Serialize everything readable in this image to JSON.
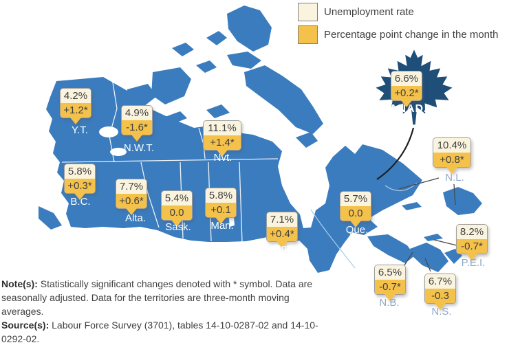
{
  "legend": {
    "items": [
      {
        "label": "Unemployment rate",
        "color": "#FAF3DE"
      },
      {
        "label": "Percentage point change in the month",
        "color": "#F4C14B"
      }
    ]
  },
  "canada": {
    "name": "CANADA",
    "rate": "6.6%",
    "change": "+0.2*"
  },
  "regions": [
    {
      "id": "yt",
      "label": "Y.T.",
      "rate": "4.2%",
      "change": "+1.2*"
    },
    {
      "id": "nwt",
      "label": "N.W.T.",
      "rate": "4.9%",
      "change": "-1.6*"
    },
    {
      "id": "nvt",
      "label": "Nvt.",
      "rate": "11.1%",
      "change": "+1.4*"
    },
    {
      "id": "bc",
      "label": "B.C.",
      "rate": "5.8%",
      "change": "+0.3*"
    },
    {
      "id": "alta",
      "label": "Alta.",
      "rate": "7.7%",
      "change": "+0.6*"
    },
    {
      "id": "sask",
      "label": "Sask.",
      "rate": "5.4%",
      "change": "0.0"
    },
    {
      "id": "man",
      "label": "Man.",
      "rate": "5.8%",
      "change": "+0.1"
    },
    {
      "id": "ont",
      "label": "Ont.",
      "rate": "7.1%",
      "change": "+0.4*"
    },
    {
      "id": "que",
      "label": "Que.",
      "rate": "5.7%",
      "change": "0.0"
    },
    {
      "id": "nl",
      "label": "N.L.",
      "rate": "10.4%",
      "change": "+0.8*"
    },
    {
      "id": "pei",
      "label": "P.E.I.",
      "rate": "8.2%",
      "change": "-0.7*"
    },
    {
      "id": "nb",
      "label": "N.B.",
      "rate": "6.5%",
      "change": "-0.7*"
    },
    {
      "id": "ns",
      "label": "N.S.",
      "rate": "6.7%",
      "change": "-0.3"
    }
  ],
  "notes": {
    "note_label": "Note(s):",
    "note_text": " Statistically significant changes denoted with * symbol. Data are seasonally adjusted. Data for the territories are three-month moving averages.",
    "source_label": "Source(s):",
    "source_text": " Labour Force Survey (3701), tables 14-10-0287-02 and 14-10-0292-02."
  },
  "colors": {
    "map_blue": "#3B7CBE",
    "leaf_navy": "#1F4E79",
    "rate_fill": "#FAF3DE",
    "change_fill": "#F4C14B"
  }
}
